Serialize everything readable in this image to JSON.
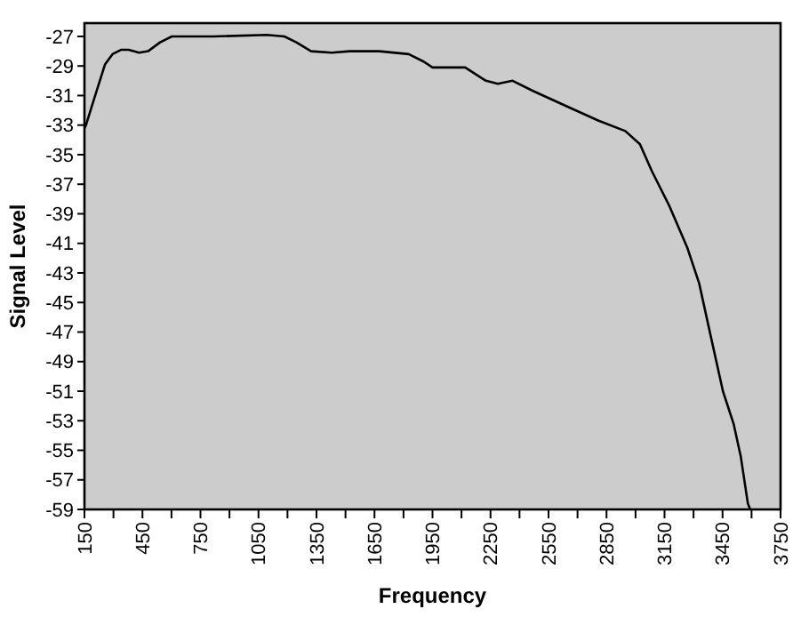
{
  "chart_data": {
    "type": "line",
    "xlabel": "Frequency",
    "ylabel": "Signal Level",
    "xlim": [
      150,
      3750
    ],
    "ylim": [
      -59,
      -26.1
    ],
    "xticks": [
      150,
      {
        "value": 300,
        "label": null
      },
      450,
      {
        "value": 600,
        "label": null
      },
      750,
      {
        "value": 900,
        "label": null
      },
      1050,
      {
        "value": 1200,
        "label": null
      },
      1350,
      {
        "value": 1500,
        "label": null
      },
      1650,
      {
        "value": 1800,
        "label": null
      },
      1950,
      {
        "value": 2100,
        "label": null
      },
      2250,
      {
        "value": 2400,
        "label": null
      },
      2550,
      {
        "value": 2700,
        "label": null
      },
      2850,
      {
        "value": 3000,
        "label": null
      },
      3150,
      {
        "value": 3300,
        "label": null
      },
      3450,
      {
        "value": 3600,
        "label": null
      },
      3750
    ],
    "yticks": [
      -27,
      -29,
      -31,
      -33,
      -35,
      -37,
      -39,
      -41,
      -43,
      -45,
      -47,
      -49,
      -51,
      -53,
      -55,
      -57,
      -59
    ],
    "grid": false,
    "marker": "none",
    "line_style": "solid",
    "series": [
      {
        "color": "#000000",
        "x": [
          150,
          158,
          203,
          256,
          295,
          341,
          378,
          433,
          479,
          541,
          602,
          694,
          817,
          1093,
          1184,
          1246,
          1322,
          1429,
          1521,
          1674,
          1827,
          1904,
          1950,
          2119,
          2226,
          2288,
          2364,
          2472,
          2656,
          2809,
          2947,
          3023,
          3084,
          3176,
          3268,
          3329,
          3391,
          3452,
          3507,
          3544,
          3581,
          3593
        ],
        "values": [
          -33.2,
          -33.0,
          -31.1,
          -28.9,
          -28.2,
          -27.9,
          -27.9,
          -28.1,
          -28.0,
          -27.4,
          -27.0,
          -27.0,
          -27.0,
          -26.9,
          -27.0,
          -27.4,
          -28.0,
          -28.1,
          -28.0,
          -28.0,
          -28.2,
          -28.7,
          -29.1,
          -29.1,
          -30.0,
          -30.2,
          -30.0,
          -30.7,
          -31.8,
          -32.7,
          -33.4,
          -34.3,
          -36.1,
          -38.5,
          -41.3,
          -43.7,
          -47.4,
          -51.0,
          -53.2,
          -55.4,
          -58.6,
          -59.0
        ]
      }
    ]
  }
}
